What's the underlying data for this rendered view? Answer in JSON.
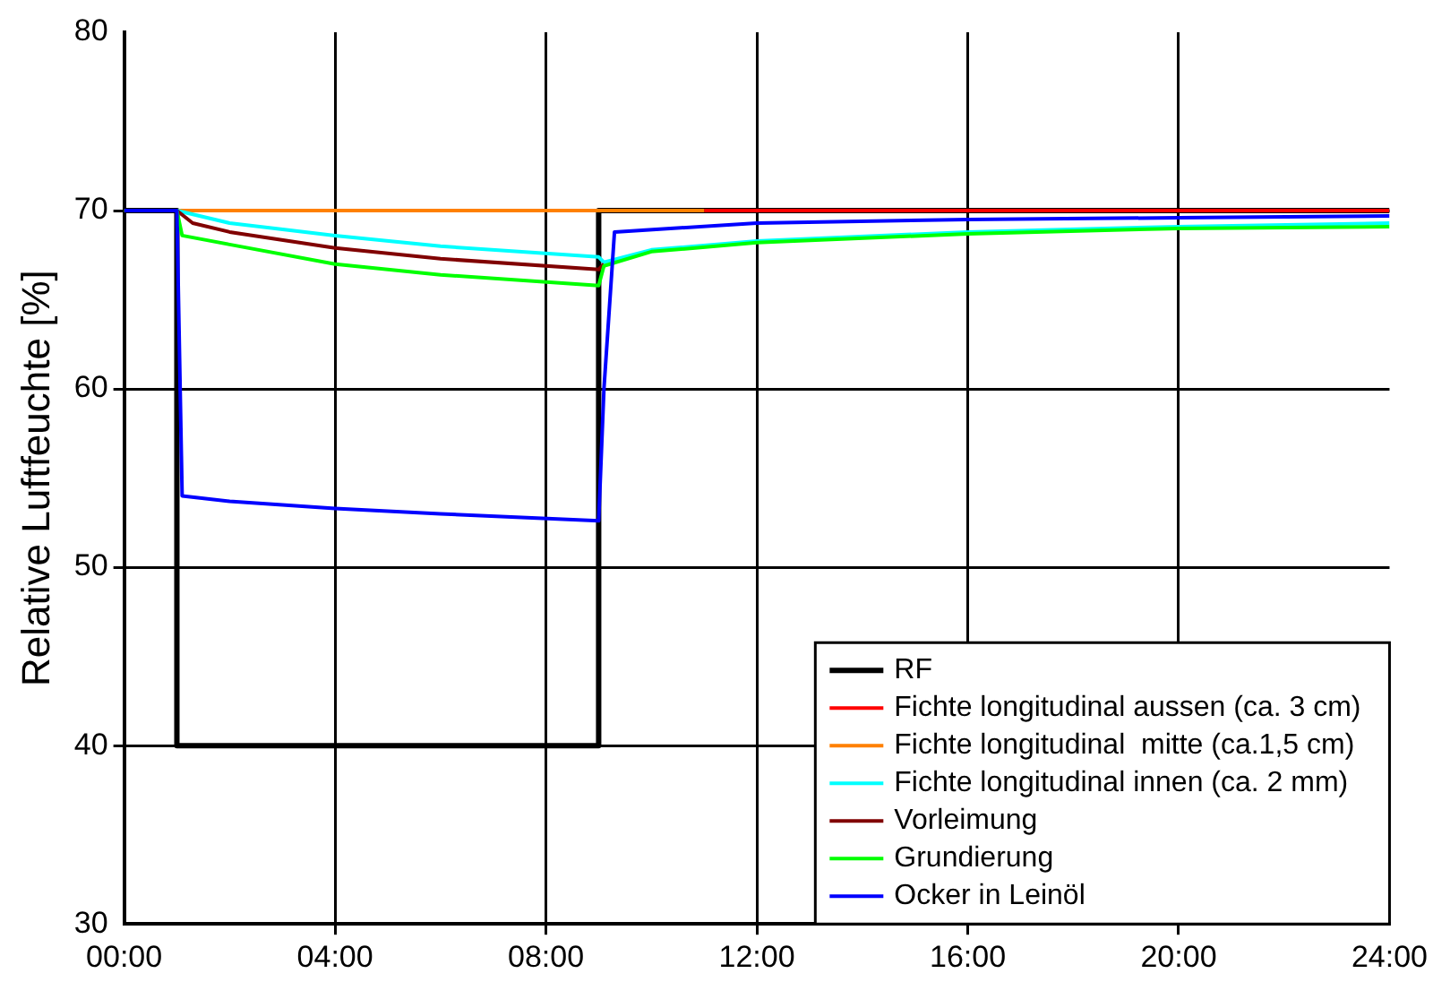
{
  "chart_data": {
    "type": "line",
    "ylabel": "Relative Luftfeuchte [%]",
    "xlim": [
      0,
      24
    ],
    "xticks": [
      {
        "value": 0,
        "label": "00:00"
      },
      {
        "value": 4,
        "label": "04:00"
      },
      {
        "value": 8,
        "label": "08:00"
      },
      {
        "value": 12,
        "label": "12:00"
      },
      {
        "value": 16,
        "label": "16:00"
      },
      {
        "value": 20,
        "label": "20:00"
      },
      {
        "value": 24,
        "label": "24:00"
      }
    ],
    "ylim": [
      30,
      80
    ],
    "yticks": [
      30,
      40,
      50,
      60,
      70,
      80
    ],
    "grid": true,
    "legend": "bottom right",
    "marker": "none",
    "line_style": "solid",
    "series": [
      {
        "name": "RF",
        "color": "#000000",
        "x": [
          0,
          1,
          1,
          9,
          9,
          24
        ],
        "values": [
          70,
          70,
          40,
          40,
          70,
          70
        ]
      },
      {
        "name": "Fichte longitudinal aussen (ca. 3 cm)",
        "color": "#ff0000",
        "x": [
          11,
          24
        ],
        "values": [
          70,
          70
        ]
      },
      {
        "name": "Fichte longitudinal  mitte (ca.1,5 cm)",
        "color": "#ff8000",
        "x": [
          0,
          11
        ],
        "values": [
          70,
          70
        ]
      },
      {
        "name": "Fichte longitudinal innen (ca. 2 mm)",
        "color": "#00ffff",
        "x": [
          0,
          1,
          2,
          4,
          6,
          9,
          9.1,
          10,
          12,
          16,
          20,
          24
        ],
        "values": [
          70,
          70,
          69.3,
          68.6,
          68,
          67.4,
          67.1,
          67.8,
          68.3,
          68.8,
          69.1,
          69.3
        ]
      },
      {
        "name": "Vorleimung",
        "color": "#800000",
        "x": [
          0,
          1,
          1.3,
          2,
          4,
          6,
          9,
          9.1
        ],
        "values": [
          70,
          70,
          69.3,
          68.8,
          67.9,
          67.3,
          66.7,
          67
        ]
      },
      {
        "name": "Grundierung",
        "color": "#00ff00",
        "x": [
          0,
          1,
          1.1,
          2,
          4,
          6,
          9,
          9.1,
          10,
          12,
          16,
          20,
          24
        ],
        "values": [
          70,
          70,
          68.6,
          68.1,
          67,
          66.4,
          65.8,
          66.9,
          67.7,
          68.2,
          68.7,
          69,
          69.1
        ]
      },
      {
        "name": "Ocker in Leinöl",
        "color": "#0000ff",
        "x": [
          0,
          1,
          1.1,
          2,
          4,
          6,
          9,
          9.1,
          9.3,
          12,
          16,
          20,
          24
        ],
        "values": [
          70,
          70,
          54,
          53.7,
          53.3,
          53,
          52.6,
          60,
          68.8,
          69.3,
          69.5,
          69.6,
          69.7
        ]
      }
    ]
  }
}
